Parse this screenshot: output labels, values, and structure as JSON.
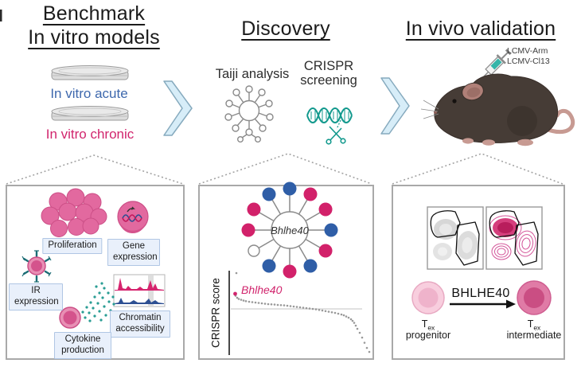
{
  "benchmark": {
    "title_line1": "Benchmark",
    "title_line2": "In vitro models",
    "acute_label": "In vitro acute",
    "chronic_label": "In vitro chronic"
  },
  "discovery": {
    "title": "Discovery",
    "taiji_label": "Taiji analysis",
    "crispr_line1": "CRISPR",
    "crispr_line2": "screening"
  },
  "invivo": {
    "title": "In vivo validation",
    "virus_label1": "LCMV-Arm",
    "virus_label2": "LCMV-Cl13"
  },
  "panel_benchmark": {
    "proliferation": "Proliferation",
    "gene_line1": "Gene",
    "gene_line2": "expression",
    "ir_line1": "IR",
    "ir_line2": "expression",
    "cytokine_line1": "Cytokine",
    "cytokine_line2": "production",
    "chromatin_line1": "Chromatin",
    "chromatin_line2": "accessibility"
  },
  "panel_discovery": {
    "hub_gene": "Bhlhe40",
    "axis_label": "CRISPR score",
    "node_colors": [
      "blue",
      "pink",
      "pink",
      "blue",
      "pink",
      "blue",
      "pink",
      "blue",
      "white",
      "pink",
      "pink",
      "blue"
    ]
  },
  "panel_invivo": {
    "arrow_label": "BHLHE40",
    "from_t": "T",
    "from_sub": "ex",
    "from_line2": "progenitor",
    "to_t": "T",
    "to_sub": "ex",
    "to_line2": "intermediate"
  },
  "colors": {
    "acute_blue": "#3e68ad",
    "chronic_pink": "#d1256d",
    "teal": "#12998d",
    "node_palette": {
      "blue": "#2f5ea7",
      "pink": "#d2216a",
      "white": "#ffffff"
    },
    "cell_pink": "#e2699f",
    "panel_border": "#a9a9a9",
    "chevron_fill": "#d7edf8"
  },
  "icons": [
    "petri-dish-icon",
    "chevron-right-icon",
    "network-hub-icon",
    "dna-scissors-icon",
    "syringe-icon",
    "mouse-icon",
    "cell-cluster-icon",
    "gene-expression-cell-icon",
    "ir-receptor-cell-icon",
    "cytokine-cell-icon",
    "chromatin-tracks-icon",
    "flow-cytometry-plot",
    "t-cell-icon"
  ],
  "chart_data": {
    "type": "scatter",
    "title": "CRISPR screen rank (waterfall) plot",
    "ylabel": "CRISPR score",
    "xlabel": "",
    "legend": false,
    "zero_line": 0,
    "dot_color": "#999999",
    "highlight": {
      "gene": "Bhlhe40",
      "x": 5.5,
      "y": 0.38,
      "color": "#d1256d"
    },
    "points": [
      [
        7,
        0.9
      ],
      [
        5,
        0.4
      ],
      [
        6,
        0.33
      ],
      [
        8,
        0.28
      ],
      [
        10,
        0.25
      ],
      [
        13,
        0.23
      ],
      [
        16,
        0.21
      ],
      [
        19,
        0.195
      ],
      [
        23,
        0.18
      ],
      [
        27,
        0.17
      ],
      [
        31,
        0.16
      ],
      [
        35,
        0.15
      ],
      [
        39,
        0.14
      ],
      [
        43,
        0.13
      ],
      [
        47,
        0.12
      ],
      [
        51,
        0.115
      ],
      [
        55,
        0.11
      ],
      [
        59,
        0.1
      ],
      [
        63,
        0.095
      ],
      [
        67,
        0.09
      ],
      [
        71,
        0.08
      ],
      [
        75,
        0.07
      ],
      [
        79,
        0.06
      ],
      [
        83,
        0.05
      ],
      [
        87,
        0.04
      ],
      [
        91,
        0.03
      ],
      [
        95,
        0.02
      ],
      [
        99,
        0.01
      ],
      [
        103,
        0.0
      ],
      [
        107,
        -0.01
      ],
      [
        111,
        -0.025
      ],
      [
        115,
        -0.04
      ],
      [
        119,
        -0.055
      ],
      [
        123,
        -0.07
      ],
      [
        127,
        -0.085
      ],
      [
        131,
        -0.1
      ],
      [
        135,
        -0.12
      ],
      [
        139,
        -0.14
      ],
      [
        142,
        -0.16
      ],
      [
        145,
        -0.19
      ],
      [
        148,
        -0.22
      ],
      [
        151,
        -0.26
      ],
      [
        153,
        -0.3
      ],
      [
        155,
        -0.35
      ],
      [
        157,
        -0.42
      ],
      [
        159,
        -0.5
      ],
      [
        162,
        -0.6
      ],
      [
        165,
        -0.72
      ],
      [
        168,
        -0.85
      ],
      [
        171,
        -0.98
      ],
      [
        174,
        -1.08
      ]
    ]
  }
}
